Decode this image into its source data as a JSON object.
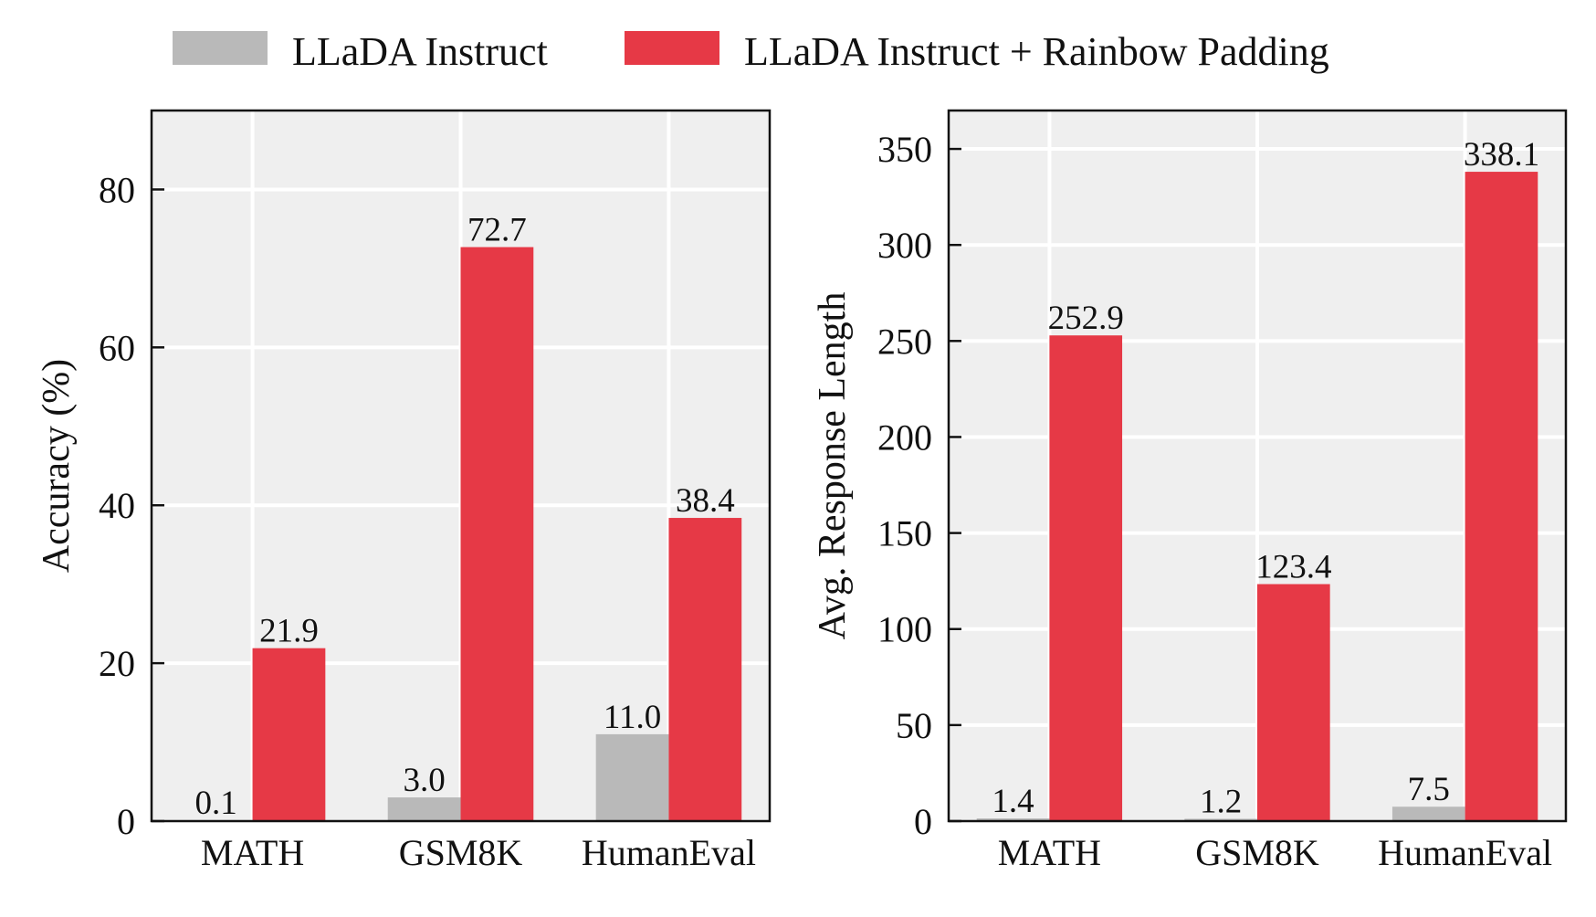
{
  "legend": {
    "placement": "top-center",
    "entries": [
      {
        "label": "LLaDA Instruct",
        "color": "#b9b9b9"
      },
      {
        "label": "LLaDA Instruct + Rainbow Padding",
        "color": "#e63946"
      }
    ]
  },
  "colors": {
    "plot_background": "#efefef",
    "grid": "#ffffff",
    "axis": "#111111"
  },
  "chart_data": [
    {
      "type": "bar",
      "title": "",
      "xlabel": "",
      "ylabel": "Accuracy (%)",
      "categories": [
        "MATH",
        "GSM8K",
        "HumanEval"
      ],
      "ylim": [
        0,
        90
      ],
      "yticks": [
        0,
        20,
        40,
        60,
        80
      ],
      "ytick_labels": [
        "0",
        "20",
        "40",
        "60",
        "80"
      ],
      "grid": true,
      "series": [
        {
          "name": "LLaDA Instruct",
          "color": "#b9b9b9",
          "values": [
            0.1,
            3.0,
            11.0
          ],
          "labels": [
            "0.1",
            "3.0",
            "11.0"
          ]
        },
        {
          "name": "LLaDA Instruct + Rainbow Padding",
          "color": "#e63946",
          "values": [
            21.9,
            72.7,
            38.4
          ],
          "labels": [
            "21.9",
            "72.7",
            "38.4"
          ]
        }
      ]
    },
    {
      "type": "bar",
      "title": "",
      "xlabel": "",
      "ylabel": "Avg. Response Length",
      "categories": [
        "MATH",
        "GSM8K",
        "HumanEval"
      ],
      "ylim": [
        0,
        370
      ],
      "yticks": [
        0,
        50,
        100,
        150,
        200,
        250,
        300,
        350
      ],
      "ytick_labels": [
        "0",
        "50",
        "100",
        "150",
        "200",
        "250",
        "300",
        "350"
      ],
      "grid": true,
      "series": [
        {
          "name": "LLaDA Instruct",
          "color": "#b9b9b9",
          "values": [
            1.4,
            1.2,
            7.5
          ],
          "labels": [
            "1.4",
            "1.2",
            "7.5"
          ]
        },
        {
          "name": "LLaDA Instruct + Rainbow Padding",
          "color": "#e63946",
          "values": [
            252.9,
            123.4,
            338.1
          ],
          "labels": [
            "252.9",
            "123.4",
            "338.1"
          ]
        }
      ]
    }
  ]
}
